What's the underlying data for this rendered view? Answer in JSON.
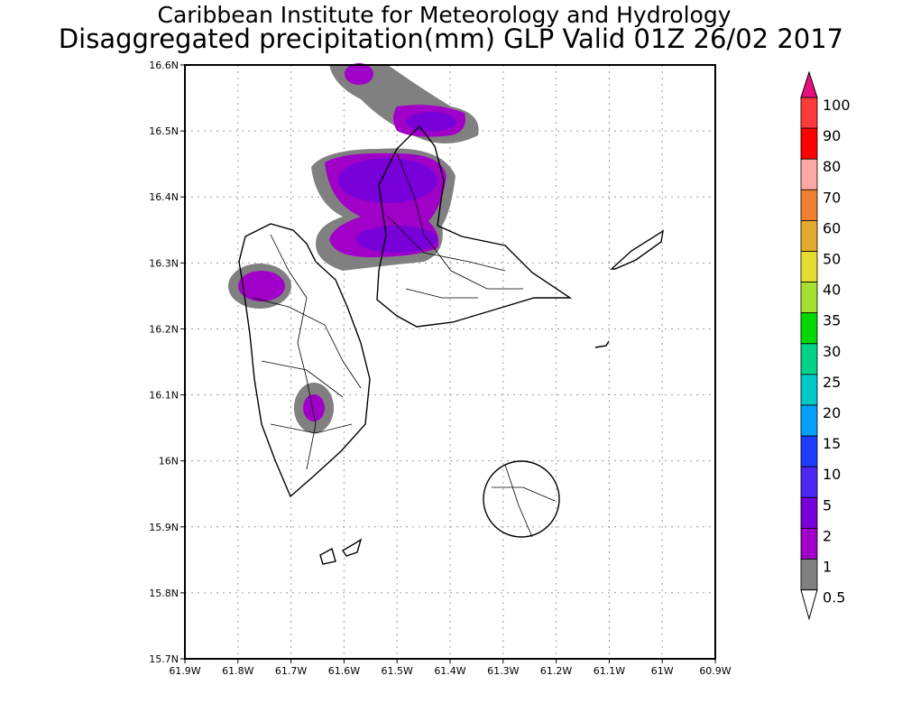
{
  "title": {
    "line1": "Caribbean Institute for Meteorology and Hydrology",
    "line2": "Disaggregated precipitation(mm) GLP Valid 01Z 26/02 2017"
  },
  "axes": {
    "lon_labels": [
      "61.9W",
      "61.8W",
      "61.7W",
      "61.6W",
      "61.5W",
      "61.4W",
      "61.3W",
      "61.2W",
      "61.1W",
      "61W",
      "60.9W"
    ],
    "lat_labels": [
      "16.6N",
      "16.5N",
      "16.4N",
      "16.3N",
      "16.2N",
      "16.1N",
      "16N",
      "15.9N",
      "15.8N",
      "15.7N"
    ]
  },
  "colorbar": {
    "labels": [
      "100",
      "90",
      "80",
      "70",
      "60",
      "50",
      "40",
      "35",
      "30",
      "25",
      "20",
      "15",
      "10",
      "5",
      "2",
      "1",
      "0.5"
    ],
    "colors": [
      "#e8107f",
      "#ff3a3a",
      "#ff0000",
      "#ffa6a6",
      "#f08030",
      "#e4aa30",
      "#e4dc30",
      "#a6e030",
      "#00d800",
      "#00d28a",
      "#00c8c8",
      "#00a0ff",
      "#1e3cff",
      "#4a28f0",
      "#7800d8",
      "#a000c8",
      "#808080",
      "#ffffff"
    ]
  }
}
